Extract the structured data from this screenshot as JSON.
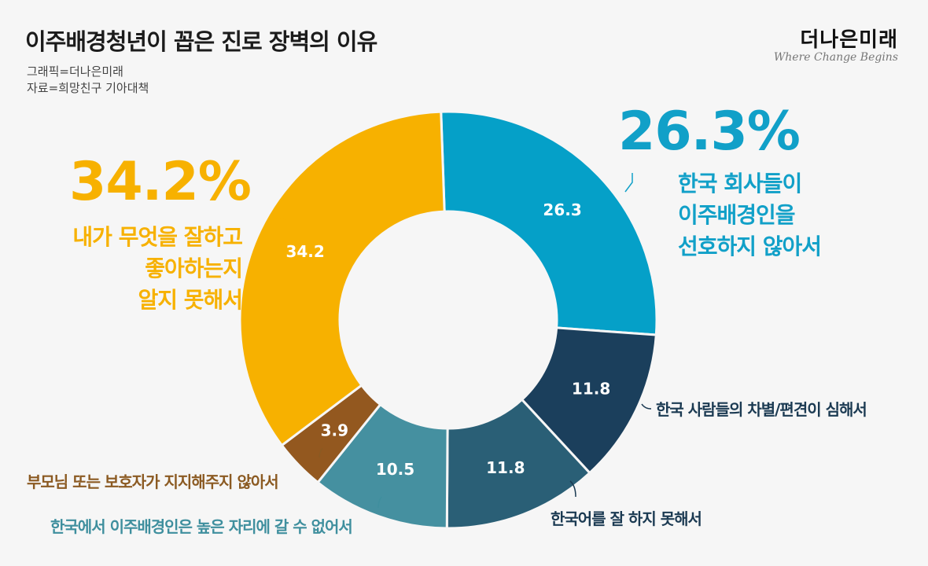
{
  "header": {
    "title": "이주배경청년이 꼽은 진로 장벽의 이유",
    "graphic_credit": "그래픽=더나은미래",
    "source": "자료=희망친구 기아대책"
  },
  "logo": {
    "name": "더나은미래",
    "tagline": "Where Change Begins"
  },
  "highlights": {
    "left": {
      "value": "34.2%",
      "lines": [
        "내가 무엇을 잘하고",
        "좋아하는지",
        "알지 못해서"
      ],
      "color": "#f7b100"
    },
    "right": {
      "value": "26.3%",
      "lines": [
        "한국 회사들이",
        "이주배경인을",
        "선호하지 않아서"
      ],
      "color": "#11a0c8"
    }
  },
  "chart_data": {
    "type": "pie",
    "variant": "donut",
    "title": "이주배경청년이 꼽은 진로 장벽의 이유",
    "unit": "%",
    "categories": [
      "한국 회사들이 이주배경인을 선호하지 않아서",
      "한국 사람들의 차별/편견이 심해서",
      "한국어를 잘 하지 못해서",
      "한국에서 이주배경인은 높은 자리에 갈 수 없어서",
      "부모님 또는 보호자가 지지해주지 않아서",
      "내가 무엇을 잘하고 좋아하는지 알지 못해서"
    ],
    "values": [
      26.3,
      11.8,
      11.8,
      10.5,
      3.9,
      34.2
    ],
    "value_labels": [
      "26.3",
      "11.8",
      "11.8",
      "10.5",
      "3.9",
      "34.2"
    ],
    "colors": [
      "#05a0c8",
      "#1b3f5c",
      "#2a5f76",
      "#4590a0",
      "#93581f",
      "#f7b100"
    ],
    "label_colors": [
      "#11a0c8",
      "#1b3a52",
      "#1b3a52",
      "#3f8f9e",
      "#8b5a22",
      "#f7b100"
    ],
    "start_angle_deg": -2,
    "direction": "clockwise"
  }
}
